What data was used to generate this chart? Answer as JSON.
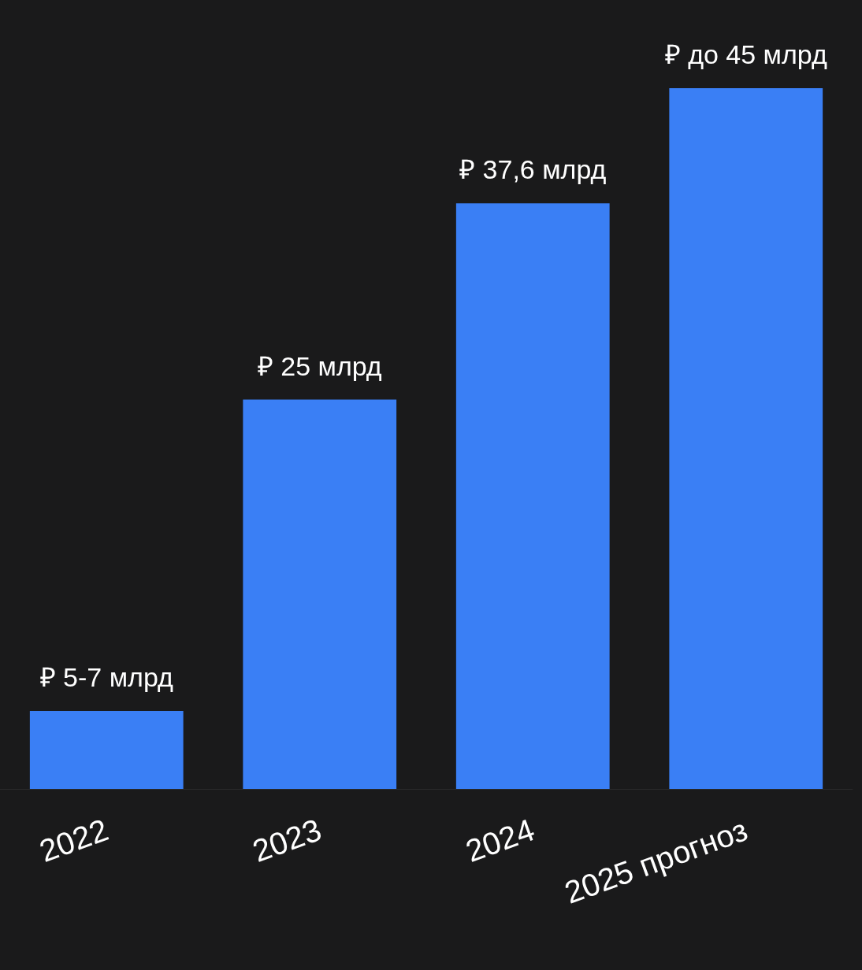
{
  "chart_data": {
    "type": "bar",
    "categories": [
      "2022",
      "2023",
      "2024",
      "2025 прогноз"
    ],
    "values": [
      5,
      25,
      37.6,
      45
    ],
    "value_labels": [
      "₽ 5-7 млрд",
      "₽ 25 млрд",
      "₽ 37,6 млрд",
      "₽ до 45 млрд"
    ],
    "color": "#3a7ff5",
    "ylim": [
      0,
      45
    ]
  }
}
